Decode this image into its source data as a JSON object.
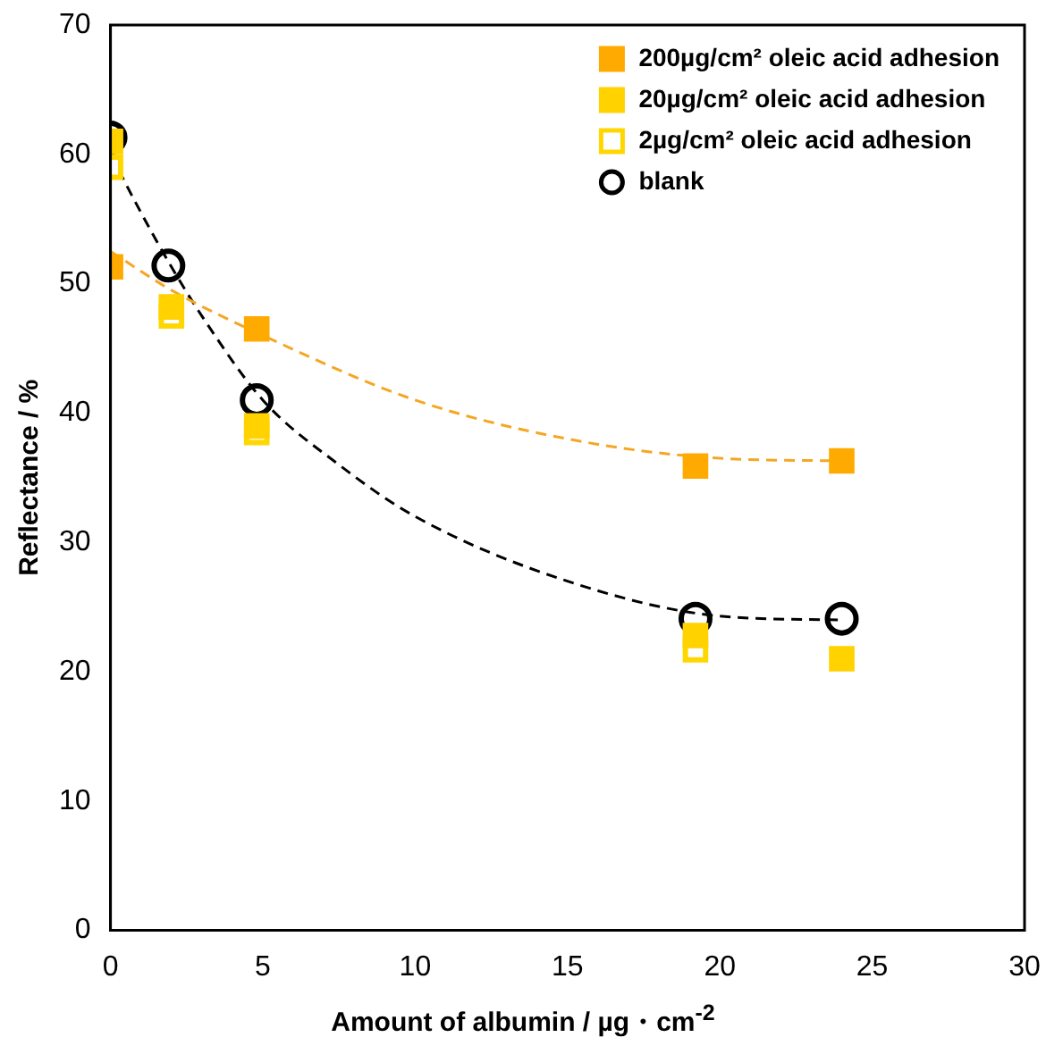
{
  "chart_data": {
    "type": "scatter",
    "xlabel": "Amount of albumin  / µg・cm$^{-2}$",
    "ylabel": "Reflectance / %",
    "xlim": [
      0,
      30
    ],
    "xticks": [
      0,
      5,
      10,
      15,
      20,
      25,
      30
    ],
    "ylim": [
      0,
      70
    ],
    "yticks": [
      0,
      10,
      20,
      30,
      40,
      50,
      60,
      70
    ],
    "grid": false,
    "legend": "top right",
    "series": [
      {
        "name": "200µg/cm² oleic acid adhesion",
        "color": "#ffaa00",
        "marker": "square",
        "x": [
          0,
          4.8,
          19.2,
          24
        ],
        "values": [
          51.3,
          46.5,
          35.9,
          36.3
        ]
      },
      {
        "name": "20µg/cm² oleic acid adhesion",
        "color": "#ffd200",
        "marker": "square",
        "x": [
          0,
          2,
          4.8,
          19.2,
          24
        ],
        "values": [
          61,
          48.2,
          39,
          22.8,
          21
        ]
      },
      {
        "name": "2µg/cm² oleic acid adhesion",
        "color": "#ffd700",
        "marker": "square",
        "x": [
          0,
          2,
          4.8,
          19.2
        ],
        "values": [
          59,
          47.5,
          38.5,
          21.7
        ]
      },
      {
        "name": "blank",
        "color": "#000000",
        "marker": "circle",
        "x": [
          0,
          1.9,
          4.8,
          19.2,
          24
        ],
        "values": [
          61.3,
          51.4,
          41,
          24.1,
          24.1
        ]
      },
      {
        "type": "line",
        "color": "#f5a623",
        "line_style": "dashed",
        "marker": "none",
        "x": [
          0,
          2,
          5,
          10,
          15,
          20,
          24
        ],
        "values": [
          52.5,
          49.5,
          46,
          41,
          38,
          36.5,
          36.3
        ]
      },
      {
        "type": "line",
        "color": "#000000",
        "line_style": "dashed",
        "marker": "none",
        "x": [
          0,
          1,
          2,
          3,
          5,
          7.5,
          10,
          15,
          20,
          24
        ],
        "values": [
          60,
          55.5,
          51.3,
          47.5,
          41,
          36,
          32,
          27,
          24.3,
          24
        ]
      }
    ]
  }
}
